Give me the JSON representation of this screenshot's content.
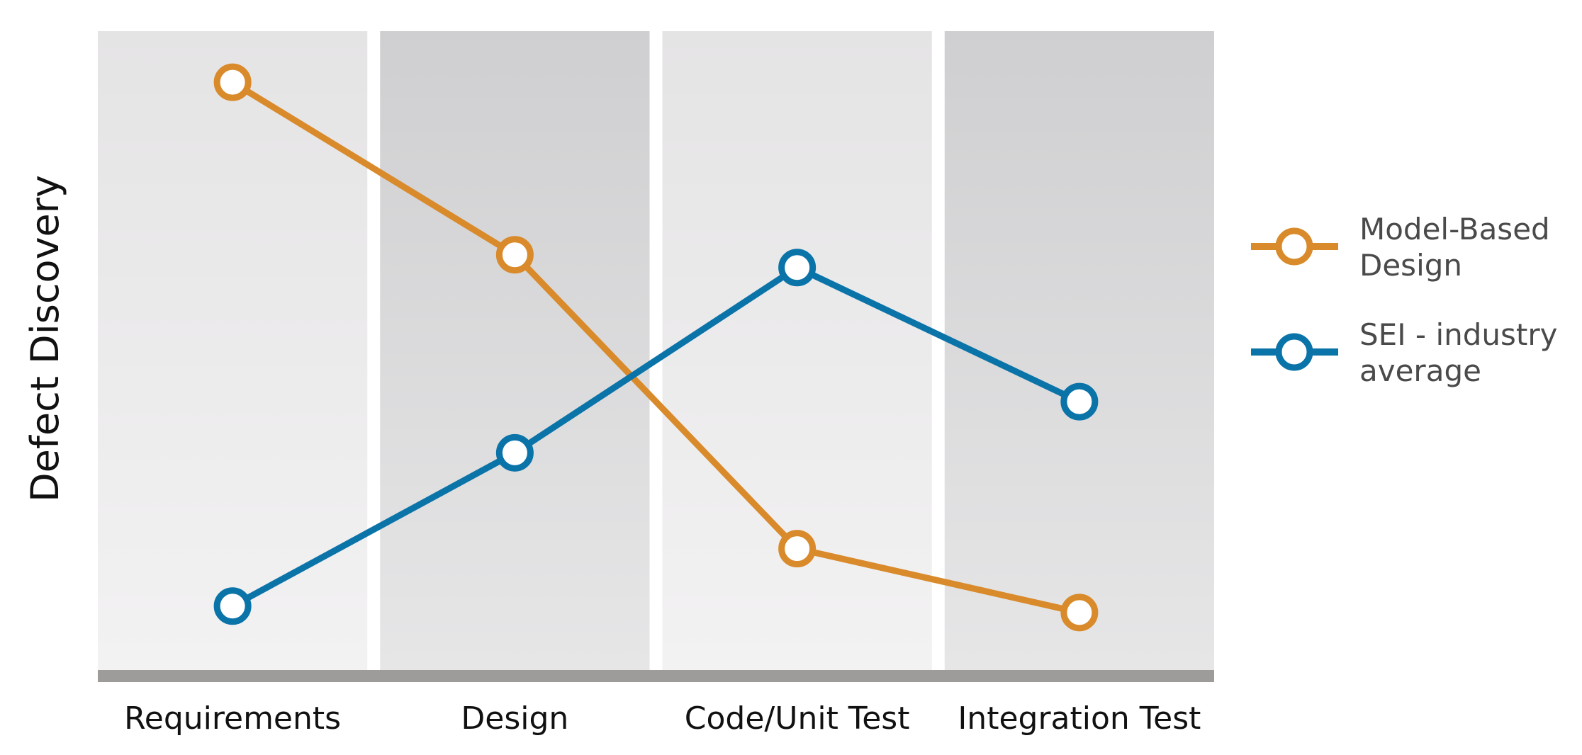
{
  "chart_data": {
    "type": "line",
    "categories": [
      "Requirements",
      "Design",
      "Code/Unit Test",
      "Integration Test"
    ],
    "ylabel": "Defect Discovery",
    "xlabel": "",
    "ylim": [
      0,
      100
    ],
    "grid": false,
    "legend_position": "right",
    "series": [
      {
        "name_lines": [
          "Model-Based",
          "Design"
        ],
        "values": [
          92,
          65,
          19,
          9
        ],
        "color": "#d98a2b"
      },
      {
        "name_lines": [
          "SEI - industry",
          "average"
        ],
        "values": [
          10,
          34,
          63,
          42
        ],
        "color": "#0a73a8"
      }
    ],
    "band_colors": [
      "#ecebec",
      "#d9d9da"
    ],
    "baseline_color": "#9d9c9b"
  }
}
